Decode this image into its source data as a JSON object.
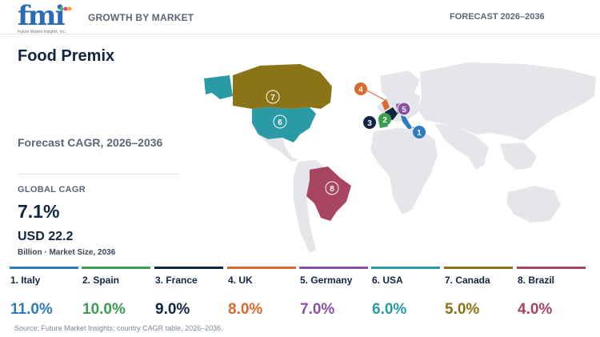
{
  "header": {
    "logo_text": "fmi",
    "logo_sub": "Future Market Insights, Inc.",
    "growth_label": "GROWTH BY MARKET",
    "forecast_label": "FORECAST 2026–2036"
  },
  "main": {
    "title": "Food Premix",
    "cagr_label": "Forecast CAGR, 2026–2036",
    "global_label": "GLOBAL CAGR",
    "global_value": "7.1%",
    "usd_value": "USD 22.2",
    "usd_sub": "Billion · Market Size, 2036"
  },
  "map": {
    "markers": [
      {
        "num": "1",
        "color": "#2e7bbd"
      },
      {
        "num": "2",
        "color": "#3a9e50"
      },
      {
        "num": "3",
        "color": "#0f2540"
      },
      {
        "num": "4",
        "color": "#d9692e"
      },
      {
        "num": "5",
        "color": "#8a4fa8"
      },
      {
        "num": "6",
        "color": "#2a9aa5"
      },
      {
        "num": "7",
        "color": "#8b7417"
      },
      {
        "num": "8",
        "color": "#a84560"
      }
    ]
  },
  "countries": [
    {
      "name": "1. Italy",
      "value": "11.0%",
      "color": "#2e7bbd"
    },
    {
      "name": "2. Spain",
      "value": "10.0%",
      "color": "#3a9e50"
    },
    {
      "name": "3. France",
      "value": "9.0%",
      "color": "#0f2540"
    },
    {
      "name": "4. UK",
      "value": "8.0%",
      "color": "#d9692e"
    },
    {
      "name": "5. Germany",
      "value": "7.0%",
      "color": "#8a4fa8"
    },
    {
      "name": "6. USA",
      "value": "6.0%",
      "color": "#2a9aa5"
    },
    {
      "name": "7. Canada",
      "value": "5.0%",
      "color": "#8b7417"
    },
    {
      "name": "8. Brazil",
      "value": "4.0%",
      "color": "#a84560"
    }
  ],
  "footer": {
    "source": "Source: Future Market Insights; country CAGR table, 2026–2036."
  }
}
